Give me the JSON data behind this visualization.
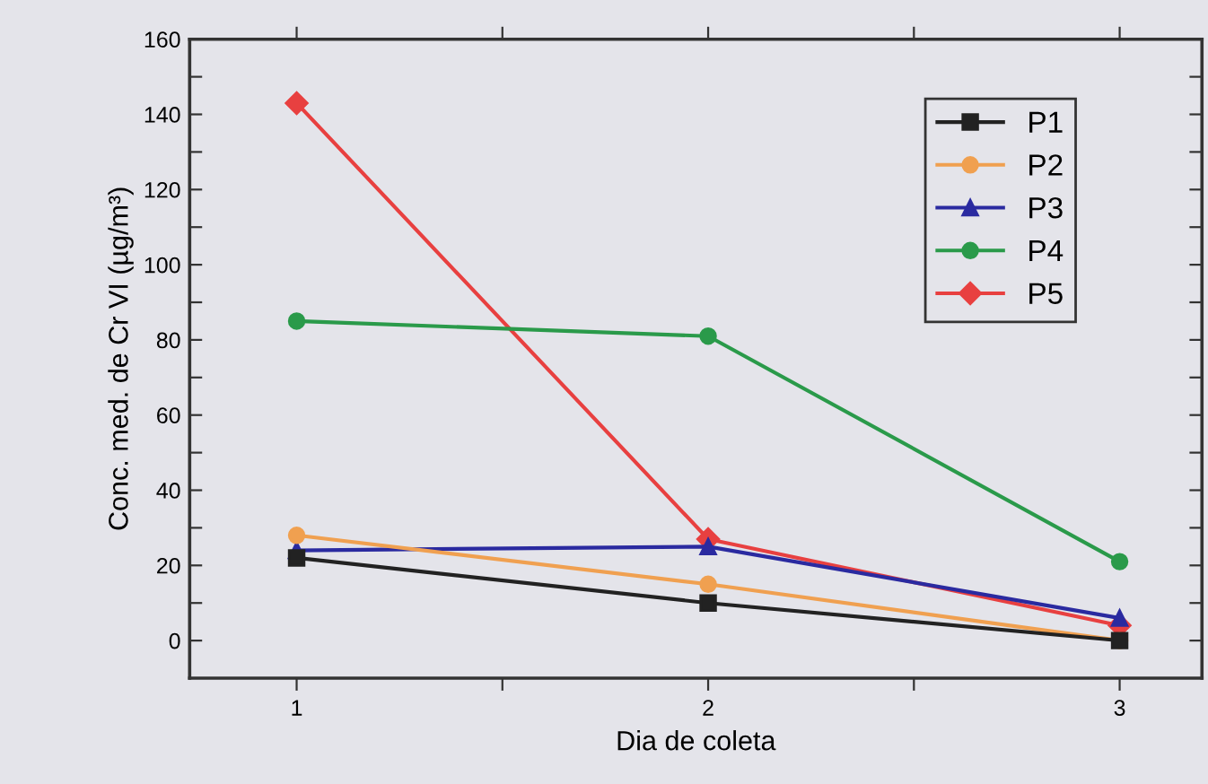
{
  "chart_data": {
    "type": "line",
    "xlabel": "Dia de coleta",
    "ylabel": "Conc. med. de Cr VI (µg/m³)",
    "x": [
      1,
      2,
      3
    ],
    "series": [
      {
        "name": "P1",
        "color": "#222222",
        "marker": "square",
        "values": [
          22,
          10,
          0
        ]
      },
      {
        "name": "P2",
        "color": "#f0a050",
        "marker": "circle",
        "values": [
          28,
          15,
          0
        ]
      },
      {
        "name": "P3",
        "color": "#2a2aa0",
        "marker": "triangle",
        "values": [
          24,
          25,
          6
        ]
      },
      {
        "name": "P4",
        "color": "#2a9a4a",
        "marker": "circle",
        "values": [
          85,
          81,
          21
        ]
      },
      {
        "name": "P5",
        "color": "#e84040",
        "marker": "diamond",
        "values": [
          143,
          27,
          4
        ]
      }
    ],
    "xlim": [
      0.74,
      3.2
    ],
    "ylim": [
      -10,
      160
    ],
    "xticks": [
      1,
      {
        "value": 1.5,
        "label": null
      },
      2,
      {
        "value": 2.5,
        "label": null
      },
      3
    ],
    "yticks": [
      0,
      {
        "value": 10,
        "label": null
      },
      20,
      {
        "value": 30,
        "label": null
      },
      40,
      {
        "value": 50,
        "label": null
      },
      60,
      {
        "value": 70,
        "label": null
      },
      80,
      {
        "value": 90,
        "label": null
      },
      100,
      {
        "value": 110,
        "label": null
      },
      120,
      {
        "value": 130,
        "label": null
      },
      140,
      {
        "value": 150,
        "label": null
      },
      160
    ],
    "grid": false,
    "legend": "top right",
    "line_style": "solid"
  }
}
